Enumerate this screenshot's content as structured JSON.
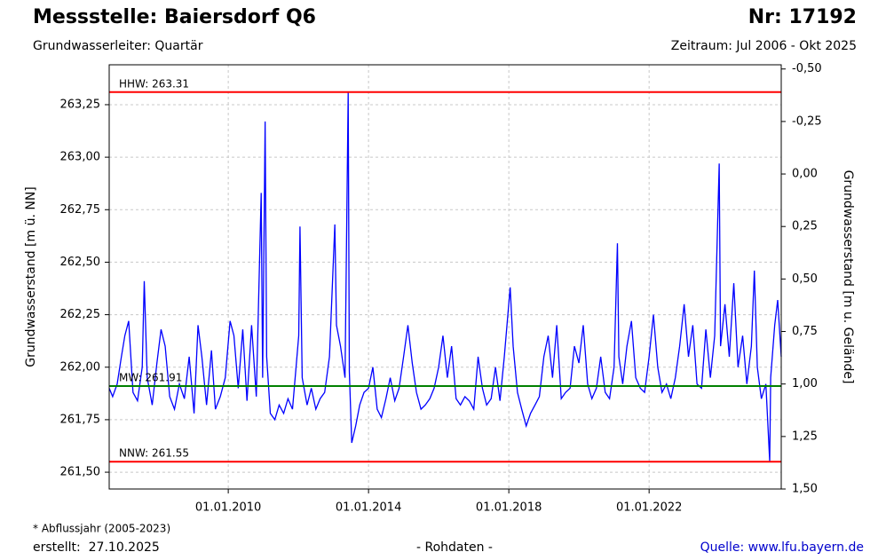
{
  "chart_data": {
    "type": "line",
    "title": "Messstelle: Baiersdorf Q6",
    "number": "Nr: 17192",
    "subtitle": "Grundwasserleiter: Quartär",
    "period": "Zeitraum: Jul 2006 - Okt 2025",
    "y_label": "Grundwasserstand [m ü. NN]",
    "y2_label": "Grundwasserstand [m u. Gelände]",
    "footnote": "* Abflussjahr (2005-2023)",
    "created": "erstellt:  27.10.2025",
    "data_note": "- Rohdaten -",
    "source": "Quelle: www.lfu.bayern.de",
    "grid": true,
    "xlim": [
      "2006-08-10",
      "2025-10-08"
    ],
    "xticks": [
      {
        "value": "2010-01-01",
        "label": "01.01.2010"
      },
      {
        "value": "2014-01-01",
        "label": "01.01.2014"
      },
      {
        "value": "2018-01-01",
        "label": "01.01.2018"
      },
      {
        "value": "2022-01-01",
        "label": "01.01.2022"
      }
    ],
    "ylim": [
      261.42,
      263.44
    ],
    "yticks": [
      {
        "value": 261.5,
        "label": "261,50"
      },
      {
        "value": 261.75,
        "label": "261,75"
      },
      {
        "value": 262.0,
        "label": "262,00"
      },
      {
        "value": 262.25,
        "label": "262,25"
      },
      {
        "value": 262.5,
        "label": "262,50"
      },
      {
        "value": 262.75,
        "label": "262,75"
      },
      {
        "value": 263.0,
        "label": "263,00"
      },
      {
        "value": 263.25,
        "label": "263,25"
      }
    ],
    "y2lim": [
      1.5,
      -0.52
    ],
    "y2ticks": [
      {
        "value": 1.5,
        "label": "1,50"
      },
      {
        "value": 1.25,
        "label": "1,25"
      },
      {
        "value": 1.0,
        "label": "1,00"
      },
      {
        "value": 0.75,
        "label": "0,75"
      },
      {
        "value": 0.5,
        "label": "0,50"
      },
      {
        "value": 0.25,
        "label": "0,25"
      },
      {
        "value": 0.0,
        "label": "0,00"
      },
      {
        "value": -0.25,
        "label": "-0,25"
      },
      {
        "value": -0.5,
        "label": "-0,50"
      }
    ],
    "reference_lines": [
      {
        "label": "HHW: 263.31",
        "value": 263.31,
        "color": "#ff0000"
      },
      {
        "label": "MW: 261.91",
        "value": 261.91,
        "color": "#008000"
      },
      {
        "label": "NNW: 261.55",
        "value": 261.55,
        "color": "#ff0000"
      }
    ],
    "x": [
      "2006-08-10",
      "2006-09-15",
      "2006-11-01",
      "2006-12-15",
      "2007-01-20",
      "2007-03-01",
      "2007-04-15",
      "2007-06-01",
      "2007-07-20",
      "2007-08-10",
      "2007-09-10",
      "2007-11-01",
      "2007-12-20",
      "2008-02-01",
      "2008-03-15",
      "2008-05-01",
      "2008-06-20",
      "2008-08-10",
      "2008-10-01",
      "2008-11-20",
      "2009-01-10",
      "2009-02-20",
      "2009-04-01",
      "2009-05-20",
      "2009-07-10",
      "2009-08-20",
      "2009-10-10",
      "2009-12-01",
      "2010-01-20",
      "2010-03-01",
      "2010-04-15",
      "2010-06-01",
      "2010-07-15",
      "2010-09-01",
      "2010-10-20",
      "2010-12-10",
      "2010-12-25",
      "2011-01-20",
      "2011-02-05",
      "2011-03-15",
      "2011-05-01",
      "2011-06-15",
      "2011-08-01",
      "2011-09-15",
      "2011-11-01",
      "2012-01-05",
      "2012-01-18",
      "2012-02-10",
      "2012-04-01",
      "2012-05-15",
      "2012-07-01",
      "2012-08-15",
      "2012-10-01",
      "2012-11-20",
      "2013-01-15",
      "2013-02-01",
      "2013-03-15",
      "2013-05-01",
      "2013-06-03",
      "2013-06-15",
      "2013-07-10",
      "2013-08-20",
      "2013-10-01",
      "2013-11-15",
      "2014-01-01",
      "2014-02-15",
      "2014-04-01",
      "2014-05-15",
      "2014-07-01",
      "2014-08-15",
      "2014-10-01",
      "2014-11-15",
      "2015-01-01",
      "2015-02-15",
      "2015-04-01",
      "2015-05-15",
      "2015-07-01",
      "2015-08-15",
      "2015-10-01",
      "2015-11-15",
      "2016-01-01",
      "2016-02-15",
      "2016-04-01",
      "2016-05-15",
      "2016-07-01",
      "2016-08-15",
      "2016-10-01",
      "2016-11-15",
      "2017-01-01",
      "2017-02-15",
      "2017-04-01",
      "2017-05-15",
      "2017-07-01",
      "2017-08-15",
      "2017-10-01",
      "2017-11-15",
      "2018-01-15",
      "2018-02-15",
      "2018-04-01",
      "2018-05-15",
      "2018-07-01",
      "2018-08-15",
      "2018-10-01",
      "2018-11-15",
      "2019-01-01",
      "2019-02-15",
      "2019-04-01",
      "2019-05-15",
      "2019-07-01",
      "2019-08-15",
      "2019-10-01",
      "2019-11-15",
      "2020-01-01",
      "2020-02-15",
      "2020-04-01",
      "2020-05-15",
      "2020-07-01",
      "2020-08-15",
      "2020-10-01",
      "2020-11-15",
      "2021-01-01",
      "2021-02-05",
      "2021-02-20",
      "2021-04-01",
      "2021-05-15",
      "2021-07-01",
      "2021-08-15",
      "2021-10-01",
      "2021-11-15",
      "2022-01-01",
      "2022-02-15",
      "2022-04-01",
      "2022-05-15",
      "2022-07-01",
      "2022-08-15",
      "2022-10-01",
      "2022-11-15",
      "2023-01-01",
      "2023-02-15",
      "2023-04-01",
      "2023-05-15",
      "2023-07-01",
      "2023-08-15",
      "2023-10-01",
      "2023-11-15",
      "2024-01-01",
      "2024-01-15",
      "2024-03-01",
      "2024-04-15",
      "2024-06-01",
      "2024-07-15",
      "2024-09-01",
      "2024-10-15",
      "2024-12-01",
      "2025-01-01",
      "2025-02-01",
      "2025-03-15",
      "2025-05-01",
      "2025-06-10",
      "2025-06-20",
      "2025-08-01",
      "2025-09-01",
      "2025-10-08"
    ],
    "series": [
      {
        "name": "Grundwasserstand",
        "color": "#0000ff",
        "values": [
          261.9,
          261.86,
          261.92,
          262.05,
          262.15,
          262.22,
          261.88,
          261.84,
          262.0,
          262.41,
          261.95,
          261.82,
          262.02,
          262.18,
          262.1,
          261.86,
          261.8,
          261.92,
          261.85,
          262.05,
          261.78,
          262.2,
          262.05,
          261.82,
          262.08,
          261.8,
          261.86,
          261.95,
          262.22,
          262.15,
          261.9,
          262.18,
          261.84,
          262.2,
          261.86,
          262.83,
          261.95,
          263.17,
          262.05,
          261.78,
          261.75,
          261.82,
          261.78,
          261.85,
          261.8,
          262.15,
          262.67,
          261.95,
          261.82,
          261.9,
          261.8,
          261.85,
          261.88,
          262.05,
          262.68,
          262.2,
          262.1,
          261.95,
          263.31,
          261.98,
          261.64,
          261.72,
          261.82,
          261.88,
          261.9,
          262.0,
          261.8,
          261.76,
          261.85,
          261.95,
          261.84,
          261.9,
          262.05,
          262.2,
          262.02,
          261.88,
          261.8,
          261.82,
          261.85,
          261.9,
          262.0,
          262.15,
          261.95,
          262.1,
          261.85,
          261.82,
          261.86,
          261.84,
          261.8,
          262.05,
          261.9,
          261.82,
          261.85,
          262.0,
          261.84,
          262.05,
          262.38,
          262.1,
          261.88,
          261.8,
          261.72,
          261.78,
          261.82,
          261.86,
          262.05,
          262.15,
          261.95,
          262.2,
          261.85,
          261.88,
          261.9,
          262.1,
          262.02,
          262.2,
          261.92,
          261.85,
          261.9,
          262.05,
          261.88,
          261.85,
          262.0,
          262.59,
          262.05,
          261.92,
          262.1,
          262.22,
          261.95,
          261.9,
          261.88,
          262.05,
          262.25,
          262.0,
          261.88,
          261.92,
          261.85,
          261.95,
          262.1,
          262.3,
          262.05,
          262.2,
          261.92,
          261.9,
          262.18,
          261.95,
          262.15,
          262.97,
          262.1,
          262.3,
          262.05,
          262.4,
          262.0,
          262.15,
          261.92,
          262.1,
          262.46,
          262.0,
          261.85,
          261.92,
          261.55,
          261.95,
          262.2,
          262.32,
          262.05
        ]
      }
    ]
  }
}
